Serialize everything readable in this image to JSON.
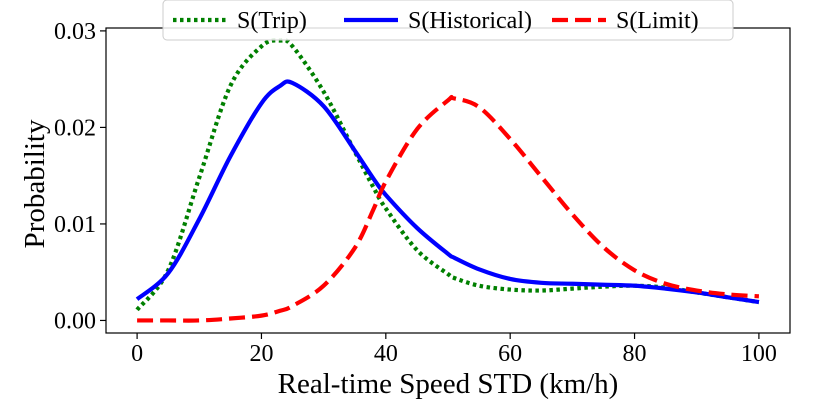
{
  "chart_data": {
    "type": "line",
    "title": "",
    "xlabel": "Real-time Speed STD (km/h)",
    "ylabel": "Probability",
    "xlim": [
      -5,
      105
    ],
    "ylim": [
      -0.0013,
      0.0303
    ],
    "xticks": [
      0,
      20,
      40,
      60,
      80,
      100
    ],
    "xtick_labels": [
      "0",
      "20",
      "40",
      "60",
      "80",
      "100"
    ],
    "yticks": [
      0.0,
      0.01,
      0.02,
      0.03
    ],
    "ytick_labels": [
      "0.00",
      "0.01",
      "0.02",
      "0.03"
    ],
    "grid": false,
    "legend_position": "top-center",
    "x": [
      0,
      5,
      10,
      15,
      20,
      23,
      25,
      30,
      35,
      38,
      40,
      45,
      50,
      51,
      55,
      60,
      65,
      70,
      75,
      80,
      85,
      90,
      95,
      100
    ],
    "series": [
      {
        "name": "S(Trip)",
        "color": "#008000",
        "style": "dotted",
        "values": [
          0.0011,
          0.0052,
          0.0148,
          0.0243,
          0.0284,
          0.029,
          0.0284,
          0.0237,
          0.0175,
          0.0138,
          0.0116,
          0.0073,
          0.0048,
          0.0044,
          0.0036,
          0.0032,
          0.0031,
          0.0033,
          0.0035,
          0.0036,
          0.0034,
          0.0029,
          0.0024,
          0.0019
        ]
      },
      {
        "name": "S(Historical)",
        "color": "#0000ff",
        "style": "solid",
        "values": [
          0.0022,
          0.0049,
          0.0105,
          0.017,
          0.0225,
          0.0243,
          0.0246,
          0.0222,
          0.0176,
          0.0147,
          0.013,
          0.0096,
          0.0069,
          0.0065,
          0.0053,
          0.0043,
          0.0039,
          0.0038,
          0.0037,
          0.0036,
          0.0033,
          0.0029,
          0.0024,
          0.0019
        ]
      },
      {
        "name": "S(Limit)",
        "color": "#ff0000",
        "style": "dashed",
        "values": [
          0.0,
          0.0,
          0.0,
          0.0002,
          0.0005,
          0.001,
          0.0015,
          0.0036,
          0.0075,
          0.0115,
          0.0144,
          0.0198,
          0.0228,
          0.023,
          0.0221,
          0.0188,
          0.0149,
          0.011,
          0.0076,
          0.0052,
          0.0038,
          0.0031,
          0.0027,
          0.0025
        ]
      }
    ]
  }
}
